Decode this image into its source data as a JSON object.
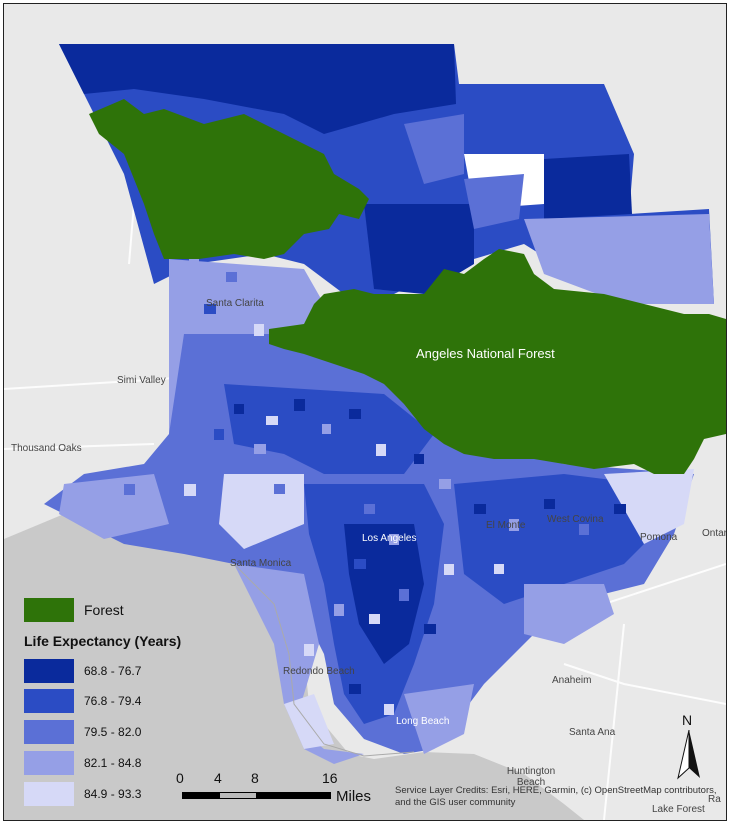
{
  "map": {
    "forest_label": "Angeles National Forest",
    "place_labels": {
      "santa_clarita": "Santa Clarita",
      "simi_valley": "Simi Valley",
      "thousand_oaks": "Thousand Oaks",
      "los_angeles": "Los Angeles",
      "santa_monica": "Santa Monica",
      "el_monte": "El Monte",
      "west_covina": "West Covina",
      "pomona": "Pomona",
      "ontario": "Ontar",
      "redondo_beach": "Redondo Beach",
      "long_beach": "Long Beach",
      "anaheim": "Anaheim",
      "santa_ana": "Santa Ana",
      "huntington_beach": "Huntington Beach",
      "lake_forest": "Lake Forest",
      "ra": "Ra"
    }
  },
  "legend": {
    "forest_label": "Forest",
    "forest_color": "#2e7309",
    "title": "Life Expectancy (Years)",
    "classes": [
      {
        "label": "68.8 - 76.7",
        "color": "#0a2a9c"
      },
      {
        "label": "76.8 - 79.4",
        "color": "#2b4cc4"
      },
      {
        "label": "79.5 - 82.0",
        "color": "#5b70d6"
      },
      {
        "label": "82.1 - 84.8",
        "color": "#959fe6"
      },
      {
        "label": "84.9 - 93.3",
        "color": "#d6d9f7"
      }
    ]
  },
  "scale_bar": {
    "ticks": [
      "0",
      "4",
      "8",
      "16"
    ],
    "units": "Miles"
  },
  "north_arrow": {
    "label": "N"
  },
  "credits": "Service Layer Credits: Esri, HERE, Garmin, (c) OpenStreetMap contributors, and the GIS user community"
}
